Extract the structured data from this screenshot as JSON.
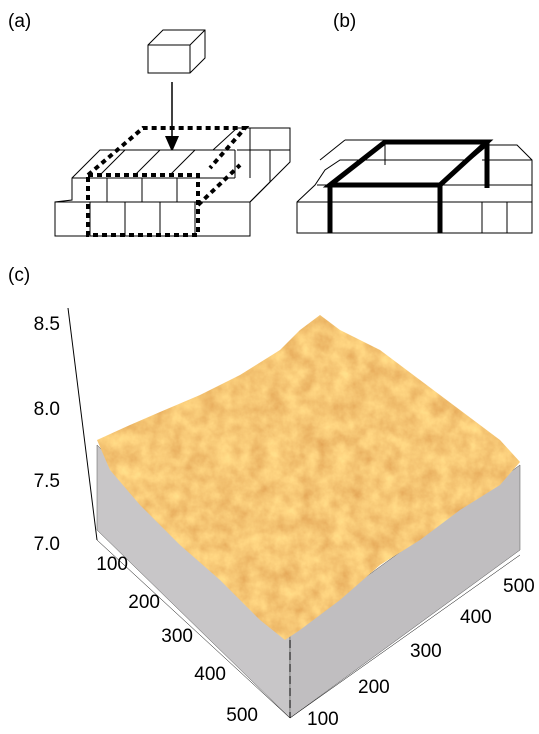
{
  "panels": {
    "a": {
      "label": "(a)"
    },
    "b": {
      "label": "(b)"
    },
    "c": {
      "label": "(c)",
      "z_ticks": [
        "7.0",
        "7.5",
        "8.0",
        "8.5"
      ],
      "x_ticks": [
        "100",
        "200",
        "300",
        "400",
        "500"
      ],
      "y_ticks": [
        "100",
        "200",
        "300",
        "400",
        "500"
      ]
    }
  }
}
